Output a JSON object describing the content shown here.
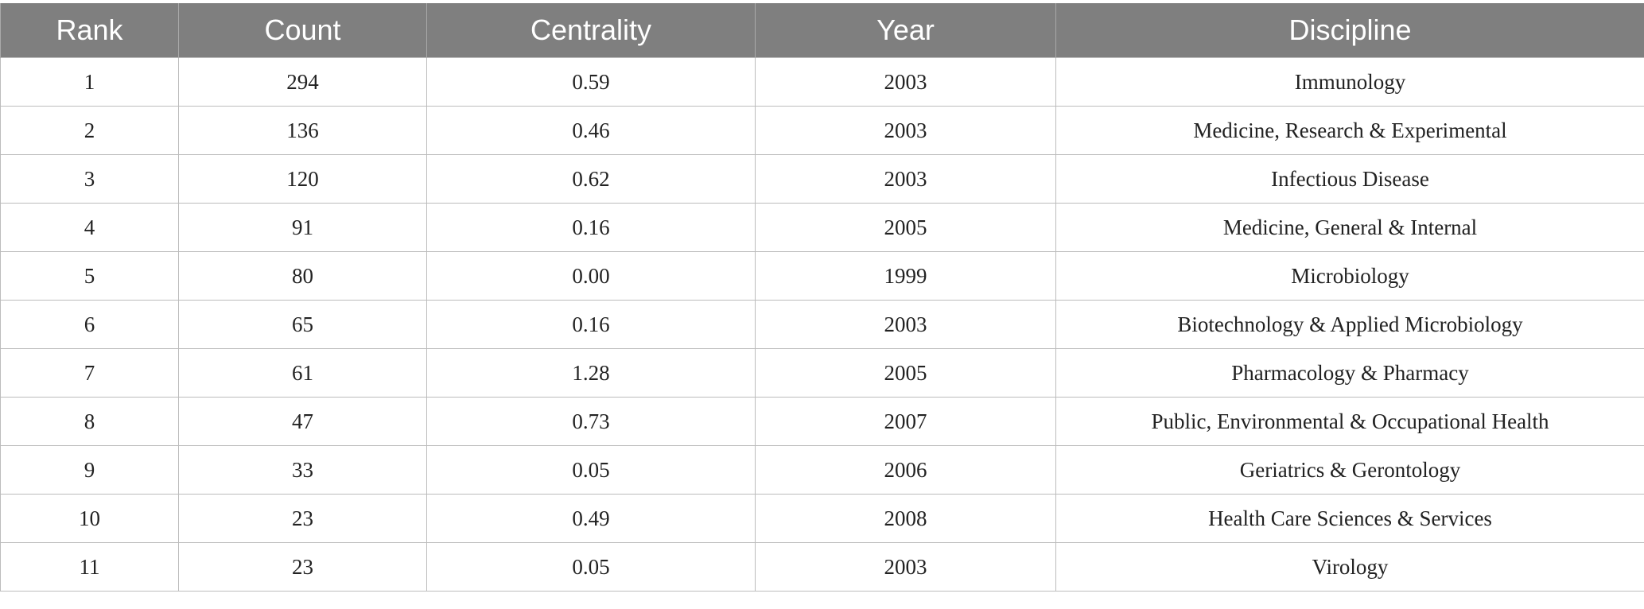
{
  "chart_data": {
    "type": "table",
    "columns": [
      "Rank",
      "Count",
      "Centrality",
      "Year",
      "Discipline"
    ],
    "rows": [
      [
        "1",
        "294",
        "0.59",
        "2003",
        "Immunology"
      ],
      [
        "2",
        "136",
        "0.46",
        "2003",
        "Medicine, Research & Experimental"
      ],
      [
        "3",
        "120",
        "0.62",
        "2003",
        "Infectious Disease"
      ],
      [
        "4",
        "91",
        "0.16",
        "2005",
        "Medicine, General & Internal"
      ],
      [
        "5",
        "80",
        "0.00",
        "1999",
        "Microbiology"
      ],
      [
        "6",
        "65",
        "0.16",
        "2003",
        "Biotechnology & Applied Microbiology"
      ],
      [
        "7",
        "61",
        "1.28",
        "2005",
        "Pharmacology & Pharmacy"
      ],
      [
        "8",
        "47",
        "0.73",
        "2007",
        "Public, Environmental & Occupational Health"
      ],
      [
        "9",
        "33",
        "0.05",
        "2006",
        "Geriatrics & Gerontology"
      ],
      [
        "10",
        "23",
        "0.49",
        "2008",
        "Health Care Sciences & Services"
      ],
      [
        "11",
        "23",
        "0.05",
        "2003",
        "Virology"
      ]
    ]
  },
  "colors": {
    "header_background": "#7f7f7f",
    "header_text": "#ffffff",
    "grid_line": "#bcbcbc",
    "cell_text": "#222222"
  }
}
